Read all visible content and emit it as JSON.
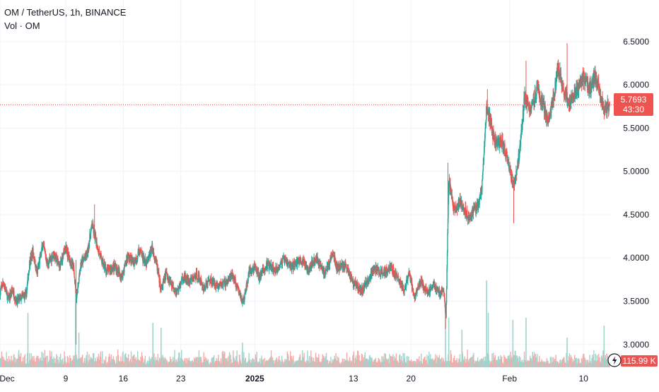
{
  "legend": {
    "symbol_line": "OM / TetherUS, 1h, BINANCE",
    "volume_line": "Vol · OM"
  },
  "colors": {
    "up": "#26a69a",
    "down": "#ef5350",
    "vol_up": "#9fd4cd",
    "vol_down": "#f7a9a7",
    "grid": "#f0f3fa",
    "axis_text": "#131722",
    "price_line": "#ef5350"
  },
  "price_badge": {
    "price": "5.7693",
    "countdown": "43:30"
  },
  "volume_badge": {
    "value": "115.99 K"
  },
  "chart_data": {
    "type": "candlestick",
    "symbol": "OM / TetherUS",
    "interval": "1h",
    "exchange": "BINANCE",
    "y_ticks": [
      "6.5000",
      "6.0000",
      "5.5000",
      "5.0000",
      "4.5000",
      "4.0000",
      "3.5000",
      "3.0000"
    ],
    "ylim": [
      2.77,
      6.98
    ],
    "x_ticks": [
      {
        "label": "Dec",
        "day": 0,
        "bold": false
      },
      {
        "label": "9",
        "day": 8,
        "bold": false
      },
      {
        "label": "16",
        "day": 15,
        "bold": false
      },
      {
        "label": "23",
        "day": 22,
        "bold": false
      },
      {
        "label": "2025",
        "day": 31,
        "bold": true
      },
      {
        "label": "13",
        "day": 43,
        "bold": false
      },
      {
        "label": "20",
        "day": 50,
        "bold": false
      },
      {
        "label": "Feb",
        "day": 62,
        "bold": false
      },
      {
        "label": "10",
        "day": 71,
        "bold": false
      }
    ],
    "x_range_days": [
      0,
      74.5
    ],
    "last_price": 5.7693,
    "close_path": [
      [
        0.0,
        3.6
      ],
      [
        0.4,
        3.72
      ],
      [
        1.0,
        3.52
      ],
      [
        1.5,
        3.63
      ],
      [
        2.0,
        3.5
      ],
      [
        3.2,
        3.58
      ],
      [
        3.6,
        3.95
      ],
      [
        4.0,
        4.07
      ],
      [
        4.5,
        3.82
      ],
      [
        5.2,
        4.15
      ],
      [
        5.8,
        3.92
      ],
      [
        6.5,
        4.05
      ],
      [
        7.3,
        3.9
      ],
      [
        7.9,
        4.12
      ],
      [
        8.5,
        3.98
      ],
      [
        9.0,
        3.86
      ],
      [
        9.3,
        3.55
      ],
      [
        9.8,
        3.92
      ],
      [
        10.6,
        4.05
      ],
      [
        11.2,
        4.38
      ],
      [
        11.6,
        4.22
      ],
      [
        12.3,
        3.98
      ],
      [
        13.0,
        3.85
      ],
      [
        14.0,
        3.9
      ],
      [
        14.8,
        3.78
      ],
      [
        15.5,
        4.02
      ],
      [
        16.3,
        3.95
      ],
      [
        17.0,
        4.08
      ],
      [
        17.8,
        3.92
      ],
      [
        18.5,
        4.12
      ],
      [
        19.0,
        3.95
      ],
      [
        19.6,
        3.62
      ],
      [
        20.2,
        3.82
      ],
      [
        20.8,
        3.72
      ],
      [
        21.5,
        3.6
      ],
      [
        22.3,
        3.78
      ],
      [
        23.0,
        3.72
      ],
      [
        24.0,
        3.8
      ],
      [
        24.8,
        3.65
      ],
      [
        25.5,
        3.75
      ],
      [
        26.5,
        3.68
      ],
      [
        27.5,
        3.72
      ],
      [
        28.3,
        3.8
      ],
      [
        29.0,
        3.62
      ],
      [
        29.6,
        3.48
      ],
      [
        30.3,
        3.82
      ],
      [
        31.0,
        3.9
      ],
      [
        31.5,
        3.78
      ],
      [
        32.5,
        3.92
      ],
      [
        33.5,
        3.85
      ],
      [
        34.5,
        3.98
      ],
      [
        35.5,
        3.9
      ],
      [
        36.5,
        3.98
      ],
      [
        37.5,
        3.88
      ],
      [
        38.5,
        4.0
      ],
      [
        39.5,
        3.82
      ],
      [
        40.5,
        4.05
      ],
      [
        41.0,
        3.88
      ],
      [
        42.0,
        3.92
      ],
      [
        43.0,
        3.72
      ],
      [
        44.0,
        3.62
      ],
      [
        44.8,
        3.75
      ],
      [
        45.5,
        3.88
      ],
      [
        46.5,
        3.82
      ],
      [
        47.5,
        3.9
      ],
      [
        48.5,
        3.75
      ],
      [
        49.2,
        3.62
      ],
      [
        49.8,
        3.82
      ],
      [
        50.4,
        3.55
      ],
      [
        51.2,
        3.72
      ],
      [
        52.0,
        3.6
      ],
      [
        52.8,
        3.7
      ],
      [
        53.5,
        3.58
      ],
      [
        54.0,
        3.63
      ],
      [
        54.25,
        3.28
      ],
      [
        54.6,
        4.9
      ],
      [
        55.2,
        4.55
      ],
      [
        56.0,
        4.65
      ],
      [
        57.0,
        4.48
      ],
      [
        58.0,
        4.58
      ],
      [
        58.6,
        4.75
      ],
      [
        59.2,
        5.75
      ],
      [
        59.7,
        5.55
      ],
      [
        60.3,
        5.3
      ],
      [
        61.0,
        5.35
      ],
      [
        61.8,
        5.15
      ],
      [
        62.4,
        4.85
      ],
      [
        62.8,
        4.95
      ],
      [
        63.3,
        5.3
      ],
      [
        63.8,
        5.85
      ],
      [
        64.5,
        5.72
      ],
      [
        65.3,
        5.95
      ],
      [
        66.0,
        5.78
      ],
      [
        66.7,
        5.6
      ],
      [
        67.3,
        5.82
      ],
      [
        67.9,
        6.2
      ],
      [
        68.5,
        5.95
      ],
      [
        69.2,
        5.8
      ],
      [
        70.0,
        5.9
      ],
      [
        71.0,
        6.08
      ],
      [
        71.8,
        5.95
      ],
      [
        72.4,
        6.1
      ],
      [
        73.0,
        5.92
      ],
      [
        73.6,
        5.72
      ],
      [
        74.2,
        5.7693
      ]
    ],
    "spikes": [
      {
        "day": 9.25,
        "low": 3.0,
        "high": 3.98
      },
      {
        "day": 11.5,
        "high": 4.62
      },
      {
        "day": 54.2,
        "low": 3.18
      },
      {
        "day": 54.5,
        "high": 5.1
      },
      {
        "day": 59.3,
        "high": 5.95
      },
      {
        "day": 62.5,
        "low": 4.4
      },
      {
        "day": 64.0,
        "high": 6.28
      },
      {
        "day": 69.0,
        "high": 6.48
      },
      {
        "day": 73.8,
        "low": 5.62
      }
    ],
    "volume_spikes": [
      {
        "day": 3.4,
        "rel": 0.55
      },
      {
        "day": 9.2,
        "rel": 0.85
      },
      {
        "day": 9.6,
        "rel": 0.35
      },
      {
        "day": 18.6,
        "rel": 0.45
      },
      {
        "day": 19.6,
        "rel": 0.4
      },
      {
        "day": 29.5,
        "rel": 0.25
      },
      {
        "day": 54.2,
        "rel": 0.6
      },
      {
        "day": 54.6,
        "rel": 0.5
      },
      {
        "day": 56.2,
        "rel": 0.38
      },
      {
        "day": 59.2,
        "rel": 0.88
      },
      {
        "day": 59.4,
        "rel": 0.55
      },
      {
        "day": 62.4,
        "rel": 0.48
      },
      {
        "day": 64.0,
        "rel": 0.5
      },
      {
        "day": 69.0,
        "rel": 0.3
      },
      {
        "day": 73.5,
        "rel": 0.42
      }
    ]
  }
}
